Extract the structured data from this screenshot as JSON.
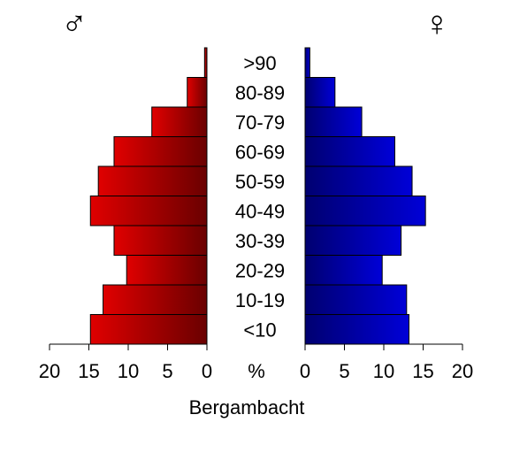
{
  "chart_data": {
    "type": "bar",
    "title": "Bergambacht",
    "unit_label": "%",
    "categories": [
      "<10",
      "10-19",
      "20-29",
      "30-39",
      "40-49",
      "50-59",
      "60-69",
      "70-79",
      "80-89",
      ">90"
    ],
    "series": [
      {
        "symbol": "♂",
        "side": "left",
        "color": "#e00000",
        "color_dark": "#6a0000",
        "values": [
          14.8,
          13.2,
          10.2,
          11.8,
          14.8,
          13.8,
          11.8,
          7.0,
          2.5,
          0.3
        ]
      },
      {
        "symbol": "♀",
        "side": "right",
        "color": "#0000d8",
        "color_dark": "#000070",
        "values": [
          13.2,
          12.9,
          9.8,
          12.2,
          15.3,
          13.6,
          11.4,
          7.2,
          3.8,
          0.6
        ]
      }
    ],
    "xlim": [
      0,
      20
    ],
    "xticks": [
      0,
      5,
      10,
      15,
      20
    ],
    "xtick_labels": [
      "0",
      "5",
      "10",
      "15",
      "20"
    ],
    "grid": false
  }
}
